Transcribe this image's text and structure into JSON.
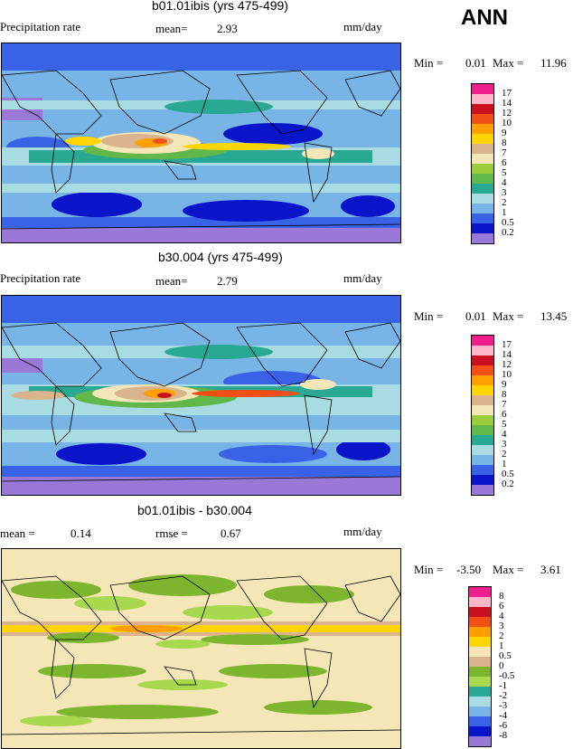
{
  "season": "ANN",
  "panels": [
    {
      "title": "b01.01ibis (yrs 475-499)",
      "left_label": "Precipitation rate",
      "mid_label": "mean=",
      "mid_value": "2.93",
      "units": "mm/day",
      "min_label": "Min =",
      "min_value": "0.01",
      "max_label": "Max =",
      "max_value": "11.96",
      "levels": [
        "17",
        "14",
        "12",
        "10",
        "9",
        "8",
        "7",
        "6",
        "5",
        "4",
        "3",
        "2",
        "1",
        "0.5",
        "0.2"
      ],
      "colors": [
        "#ee1f8c",
        "#ffb6c9",
        "#c8101f",
        "#f24f16",
        "#ff9f00",
        "#ffd500",
        "#d9b48c",
        "#f5e6b8",
        "#9acc3c",
        "#61b74a",
        "#29a894",
        "#a9dbe3",
        "#78b4e6",
        "#3a62e6",
        "#0a14c8",
        "#9a78d8"
      ]
    },
    {
      "title": "b30.004 (yrs 475-499)",
      "left_label": "Precipitation rate",
      "mid_label": "mean=",
      "mid_value": "2.79",
      "units": "mm/day",
      "min_label": "Min =",
      "min_value": "0.01",
      "max_label": "Max =",
      "max_value": "13.45",
      "levels": [
        "17",
        "14",
        "12",
        "10",
        "9",
        "8",
        "7",
        "6",
        "5",
        "4",
        "3",
        "2",
        "1",
        "0.5",
        "0.2"
      ],
      "colors": [
        "#ee1f8c",
        "#ffb6c9",
        "#c8101f",
        "#f24f16",
        "#ff9f00",
        "#ffd500",
        "#d9b48c",
        "#f5e6b8",
        "#9acc3c",
        "#61b74a",
        "#29a894",
        "#a9dbe3",
        "#78b4e6",
        "#3a62e6",
        "#0a14c8",
        "#9a78d8"
      ]
    },
    {
      "title": "b01.01ibis - b30.004",
      "left_label": "mean =",
      "left_value": "0.14",
      "mid_label": "rmse =",
      "mid_value": "0.67",
      "units": "mm/day",
      "min_label": "Min =",
      "min_value": "-3.50",
      "max_label": "Max =",
      "max_value": "3.61",
      "levels": [
        "8",
        "6",
        "4",
        "3",
        "2",
        "1",
        "0.5",
        "0",
        "-0.5",
        "-1",
        "-2",
        "-3",
        "-4",
        "-6",
        "-8"
      ],
      "colors": [
        "#ee1f8c",
        "#ffb6c9",
        "#c8101f",
        "#f24f16",
        "#ff9f00",
        "#ffd500",
        "#f5e6b8",
        "#d9b48c",
        "#7db52f",
        "#a8d84e",
        "#29a894",
        "#a9dbe3",
        "#78b4e6",
        "#3a62e6",
        "#0a14c8",
        "#9a78d8"
      ]
    }
  ]
}
